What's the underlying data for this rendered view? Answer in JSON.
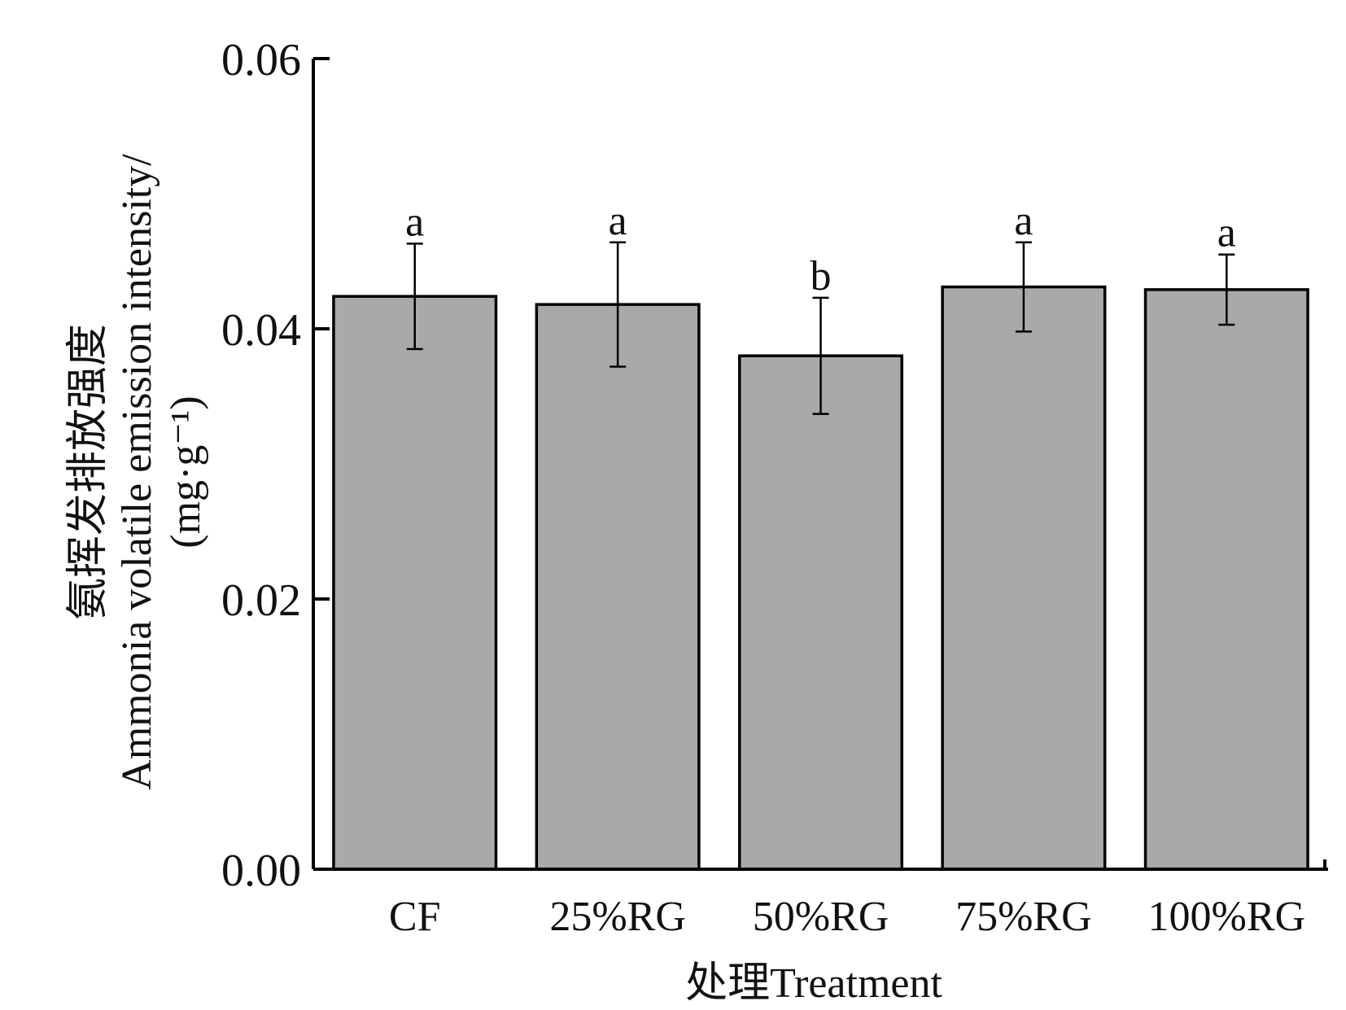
{
  "chart_data": {
    "type": "bar",
    "categories": [
      "CF",
      "25%RG",
      "50%RG",
      "75%RG",
      "100%RG"
    ],
    "values": [
      0.0424,
      0.0418,
      0.038,
      0.0431,
      0.0429
    ],
    "error": [
      0.0039,
      0.0046,
      0.0043,
      0.0033,
      0.0026
    ],
    "significance": [
      "a",
      "a",
      "b",
      "a",
      "a"
    ],
    "xlabel": "处理Treatment",
    "ylabel_lines": [
      "氨挥发排放强度",
      "Ammonia volatile emission intensity/",
      "(mg·g⁻¹)"
    ],
    "ylim": [
      0,
      0.06
    ],
    "yticks": [
      "0.00",
      "0.02",
      "0.04",
      "0.06"
    ],
    "ytick_values": [
      0,
      0.02,
      0.04,
      0.06
    ],
    "grid": false,
    "colors": {
      "bar_fill": "#a9a9a9",
      "bar_stroke": "#000000"
    }
  }
}
